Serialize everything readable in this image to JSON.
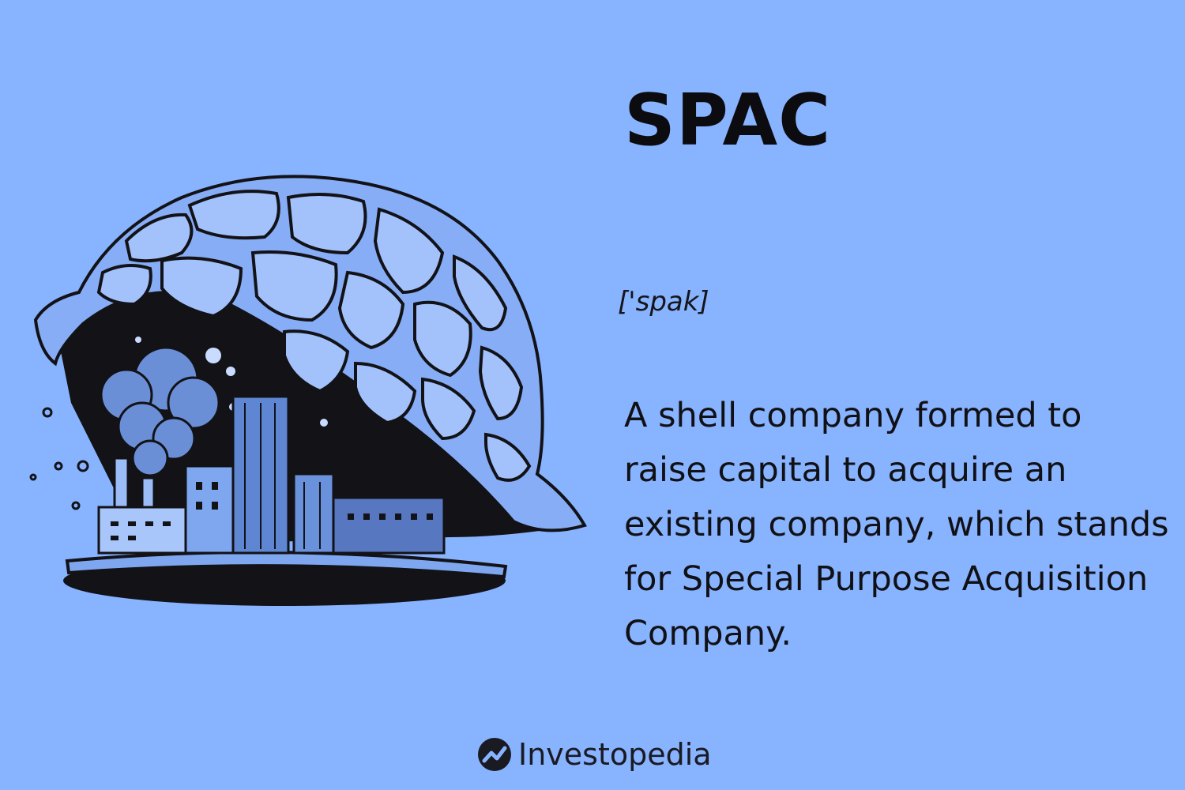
{
  "term": "SPAC",
  "pronunciation": "['spak]",
  "definition": "A shell company formed to raise capital to acquire an existing company, which stands for Special Purpose Acquisition Company.",
  "brand": {
    "name": "Investopedia"
  },
  "colors": {
    "background": "#88b3ff",
    "ink": "#111115",
    "accent": "#4a6fb3"
  }
}
